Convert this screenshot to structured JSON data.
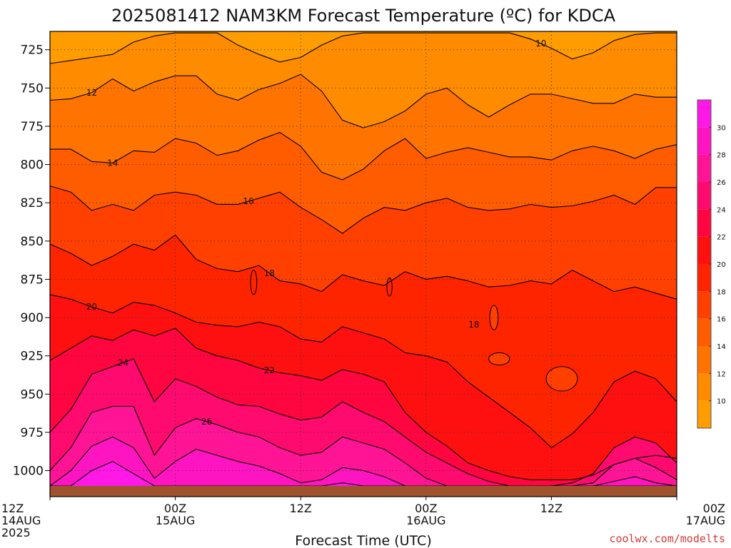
{
  "chart_data": {
    "type": "heatmap",
    "title": "2025081412 NAM3KM Forecast Temperature (ºC) for KDCA",
    "xlabel": "Forecast Time (UTC)",
    "ylabel": "",
    "credit": "coolwx.com/modelts",
    "y_axis": {
      "quantity": "pressure (hPa)",
      "inverted": true,
      "ylim": [
        1017,
        713
      ],
      "ticks": [
        725,
        750,
        775,
        800,
        825,
        850,
        875,
        900,
        925,
        950,
        975,
        1000
      ]
    },
    "x_axis": {
      "quantity": "forecast hour",
      "xlim": [
        0,
        60
      ],
      "ticks": [
        {
          "hour": 0,
          "lines": [
            "12Z",
            "14AUG",
            "2025"
          ]
        },
        {
          "hour": 12,
          "lines": [
            "00Z",
            "15AUG"
          ]
        },
        {
          "hour": 24,
          "lines": [
            "12Z"
          ]
        },
        {
          "hour": 36,
          "lines": [
            "00Z",
            "16AUG"
          ]
        },
        {
          "hour": 48,
          "lines": [
            "12Z"
          ]
        },
        {
          "hour": 60,
          "lines": [
            "00Z",
            "17AUG"
          ]
        }
      ]
    },
    "grid": "dotted",
    "colorbar": {
      "placement": "right",
      "levels": [
        8,
        10,
        12,
        14,
        16,
        18,
        20,
        22,
        24,
        26,
        28,
        30,
        32
      ],
      "tick_labels": [
        "10",
        "12",
        "14",
        "16",
        "18",
        "20",
        "22",
        "24",
        "26",
        "28",
        "30"
      ],
      "colors": [
        "#ff9c00",
        "#ff8c00",
        "#ff7400",
        "#ff5c00",
        "#ff4000",
        "#ff2400",
        "#ff1010",
        "#ff0640",
        "#ff0a6e",
        "#ff1496",
        "#ff14c2",
        "#ff18e6"
      ]
    },
    "ground_color": "#a0522d",
    "surface_pressure_hpa": 1010,
    "contours": [
      {
        "level": 10,
        "label": "10",
        "label_at_hour": 47,
        "pressure": [
          734,
          732,
          730,
          728,
          720,
          716,
          714,
          714,
          714,
          722,
          728,
          733,
          730,
          722,
          716,
          714,
          714,
          714,
          714,
          714,
          714,
          714,
          714,
          718,
          724,
          731,
          727,
          719,
          715,
          714,
          714
        ]
      },
      {
        "level": 12,
        "label": "12",
        "label_at_hour": 4,
        "pressure": [
          758,
          757,
          753,
          744,
          752,
          746,
          742,
          742,
          754,
          758,
          751,
          747,
          741,
          752,
          771,
          776,
          772,
          765,
          754,
          750,
          761,
          769,
          761,
          754,
          754,
          757,
          760,
          760,
          754,
          756,
          756
        ]
      },
      {
        "level": 14,
        "label": "14",
        "label_at_hour": 6,
        "pressure": [
          790,
          790,
          798,
          799,
          791,
          792,
          783,
          786,
          794,
          791,
          784,
          779,
          788,
          805,
          810,
          803,
          791,
          783,
          796,
          792,
          789,
          792,
          795,
          795,
          797,
          791,
          788,
          791,
          796,
          790,
          787
        ]
      },
      {
        "level": 16,
        "label": "16",
        "label_at_hour": 19,
        "pressure": [
          814,
          818,
          830,
          826,
          830,
          820,
          818,
          820,
          826,
          826,
          822,
          818,
          828,
          836,
          845,
          835,
          828,
          830,
          825,
          822,
          828,
          830,
          829,
          826,
          828,
          827,
          824,
          820,
          826,
          815,
          815
        ]
      },
      {
        "level": 18,
        "label": "18",
        "label_at_hour": 21,
        "pressure": [
          852,
          858,
          866,
          860,
          852,
          856,
          846,
          862,
          868,
          870,
          866,
          876,
          878,
          883,
          872,
          876,
          879,
          870,
          875,
          873,
          876,
          880,
          879,
          876,
          878,
          869,
          876,
          883,
          880,
          884,
          888
        ]
      },
      {
        "level": 20,
        "label": "20",
        "label_at_hour": 4,
        "pressure": [
          885,
          888,
          893,
          897,
          890,
          892,
          897,
          903,
          905,
          906,
          903,
          906,
          914,
          916,
          906,
          910,
          914,
          923,
          925,
          929,
          942,
          952,
          962,
          972,
          985,
          976,
          962,
          942,
          935,
          940,
          955
        ]
      },
      {
        "level": 22,
        "label": "22",
        "label_at_hour": 21,
        "pressure": [
          928,
          920,
          912,
          915,
          908,
          912,
          907,
          920,
          925,
          928,
          933,
          936,
          938,
          941,
          934,
          937,
          942,
          962,
          975,
          984,
          995,
          1000,
          1004,
          1006,
          1006,
          1006,
          1003,
          996,
          992,
          990,
          992
        ]
      },
      {
        "level": 24,
        "label": "24",
        "label_at_hour": 7,
        "pressure": [
          975,
          960,
          937,
          932,
          927,
          955,
          940,
          945,
          952,
          957,
          958,
          963,
          967,
          965,
          955,
          962,
          968,
          978,
          988,
          995,
          1002,
          1007,
          1010,
          1010,
          1010,
          1008,
          1002,
          985,
          978,
          982,
          995
        ]
      },
      {
        "level": 26,
        "label": "26",
        "label_at_hour": 15,
        "pressure": [
          1000,
          985,
          962,
          958,
          958,
          990,
          972,
          966,
          970,
          975,
          978,
          985,
          990,
          988,
          978,
          982,
          986,
          995,
          1005,
          1010,
          1010,
          1010,
          1010,
          1010,
          1010,
          1010,
          1008,
          996,
          992,
          998,
          1006
        ]
      },
      {
        "level": 28,
        "label": "",
        "label_at_hour": null,
        "pressure": [
          1010,
          1000,
          984,
          978,
          985,
          1005,
          994,
          986,
          990,
          994,
          997,
          1002,
          1008,
          1006,
          998,
          1000,
          1004,
          1010,
          1010,
          1010,
          1010,
          1010,
          1010,
          1010,
          1010,
          1010,
          1010,
          1007,
          1004,
          1008,
          1010
        ]
      },
      {
        "level": 30,
        "label": "",
        "label_at_hour": null,
        "pressure": [
          1010,
          1010,
          1000,
          994,
          1002,
          1010,
          1010,
          1010,
          1010,
          1010,
          1010,
          1010,
          1010,
          1010,
          1008,
          1010,
          1010,
          1010,
          1010,
          1010,
          1010,
          1010,
          1010,
          1010,
          1010,
          1010,
          1010,
          1010,
          1010,
          1010,
          1010
        ]
      }
    ],
    "cutoff_lows": [
      {
        "level": 18,
        "label": "18",
        "center_hour": 42.5,
        "center_pressure": 900,
        "half_width_hours": 0.4,
        "half_height_hpa": 8
      },
      {
        "level": 18,
        "label": "",
        "center_hour": 49,
        "center_pressure": 940,
        "half_width_hours": 1.5,
        "half_height_hpa": 8
      },
      {
        "level": 18,
        "label": "",
        "center_hour": 43,
        "center_pressure": 927,
        "half_width_hours": 1.0,
        "half_height_hpa": 4
      },
      {
        "level": 20,
        "label": "",
        "center_hour": 19.5,
        "center_pressure": 877,
        "half_width_hours": 0.3,
        "half_height_hpa": 8
      },
      {
        "level": 20,
        "label": "",
        "center_hour": 32.5,
        "center_pressure": 880,
        "half_width_hours": 0.25,
        "half_height_hpa": 6
      }
    ]
  }
}
